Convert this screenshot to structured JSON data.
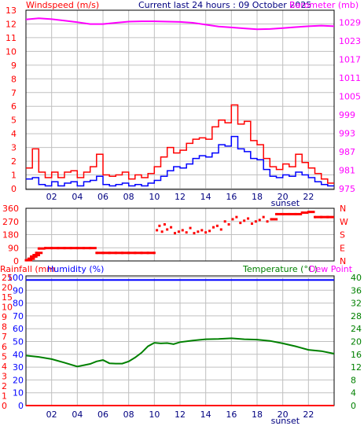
{
  "header": {
    "windspeed_label": "Windspeed (m/s)",
    "current_label": "Current last 24 hours : 09 October 2025",
    "barometer_label": "Barometer (mb)"
  },
  "labels": {
    "rainfall": "Rainfall (mm",
    "humidity": "Humidity (%)",
    "temperature": "Temperature (°C)",
    "dew_point": "Dew Point",
    "sunset": "sunset"
  },
  "colors": {
    "background": "#ffffff",
    "grid": "#c0c0c0",
    "wind_gust": "#ff0000",
    "wind_avg": "#0000ff",
    "barometer": "#ff00ff",
    "direction": "#ff0000",
    "humidity": "#0000ff",
    "rainfall": "#ff0000",
    "temperature": "#008000",
    "axis_red": "#ff0000",
    "axis_magenta": "#ff00ff",
    "axis_blue": "#0000ff",
    "axis_green": "#008000",
    "axis_navy": "#000080"
  },
  "chart_data": [
    {
      "id": "wind",
      "type": "line",
      "title": "Current last 24 hours : 09 October 2025",
      "x_tick_labels": [
        "02",
        "04",
        "06",
        "08",
        "10",
        "12",
        "14",
        "16",
        "18",
        "20",
        "22"
      ],
      "x_range_hours": [
        0,
        24
      ],
      "left_axis": {
        "label": "Windspeed (m/s)",
        "ticks": [
          "0",
          "1",
          "2",
          "3",
          "4",
          "5",
          "6",
          "7",
          "8",
          "9",
          "10",
          "11",
          "12",
          "13"
        ],
        "range": [
          0,
          13
        ]
      },
      "right_axis": {
        "label": "Barometer (mb)",
        "ticks": [
          "975",
          "981",
          "987",
          "993",
          "999",
          "1005",
          "1011",
          "1017",
          "1023",
          "1029"
        ],
        "range": [
          975,
          1033
        ]
      },
      "grid": true,
      "annotation": "sunset",
      "sunset_hour": 19.2,
      "series": [
        {
          "role": "gust",
          "x": [
            0,
            0.5,
            1,
            1.5,
            2,
            2.5,
            3,
            3.5,
            4,
            4.5,
            5,
            5.5,
            6,
            6.5,
            7,
            7.5,
            8,
            8.5,
            9,
            9.5,
            10,
            10.5,
            11,
            11.5,
            12,
            12.5,
            13,
            13.5,
            14,
            14.5,
            15,
            15.5,
            16,
            16.5,
            17,
            17.5,
            18,
            18.5,
            19,
            19.5,
            20,
            20.5,
            21,
            21.5,
            22,
            22.5,
            23,
            23.5
          ],
          "values": [
            1.5,
            2.9,
            1.2,
            0.8,
            1.2,
            0.8,
            1.2,
            1.3,
            0.8,
            1.2,
            1.6,
            2.5,
            1.0,
            0.9,
            1.0,
            1.2,
            0.7,
            1.0,
            0.8,
            1.1,
            1.6,
            2.3,
            3.0,
            2.6,
            2.8,
            3.3,
            3.6,
            3.7,
            3.6,
            4.5,
            5.0,
            4.8,
            6.1,
            4.7,
            4.9,
            3.5,
            3.2,
            2.2,
            1.6,
            1.4,
            1.8,
            1.6,
            2.5,
            1.9,
            1.5,
            1.1,
            0.7,
            0.4
          ]
        },
        {
          "role": "average",
          "x": [
            0,
            0.5,
            1,
            1.5,
            2,
            2.5,
            3,
            3.5,
            4,
            4.5,
            5,
            5.5,
            6,
            6.5,
            7,
            7.5,
            8,
            8.5,
            9,
            9.5,
            10,
            10.5,
            11,
            11.5,
            12,
            12.5,
            13,
            13.5,
            14,
            14.5,
            15,
            15.5,
            16,
            16.5,
            17,
            17.5,
            18,
            18.5,
            19,
            19.5,
            20,
            20.5,
            21,
            21.5,
            22,
            22.5,
            23,
            23.5
          ],
          "values": [
            0.7,
            0.8,
            0.3,
            0.2,
            0.5,
            0.2,
            0.4,
            0.5,
            0.2,
            0.5,
            0.6,
            0.9,
            0.3,
            0.2,
            0.3,
            0.4,
            0.2,
            0.3,
            0.2,
            0.4,
            0.6,
            0.9,
            1.3,
            1.6,
            1.5,
            1.8,
            2.2,
            2.4,
            2.3,
            2.6,
            3.2,
            3.1,
            3.8,
            2.9,
            2.7,
            2.2,
            2.1,
            1.4,
            0.9,
            0.8,
            1.0,
            0.9,
            1.2,
            1.0,
            0.8,
            0.5,
            0.3,
            0.2
          ]
        },
        {
          "role": "barometer",
          "x": [
            0,
            1,
            2,
            3,
            4,
            5,
            6,
            7,
            8,
            9,
            10,
            11,
            12,
            13,
            14,
            15,
            16,
            17,
            18,
            19,
            20,
            21,
            22,
            23,
            24
          ],
          "values": [
            1030,
            1030.4,
            1030.1,
            1029.6,
            1029.1,
            1028.5,
            1028.5,
            1028.9,
            1029.3,
            1029.4,
            1029.4,
            1029.3,
            1029.2,
            1028.9,
            1028.3,
            1027.7,
            1027.4,
            1027.1,
            1026.8,
            1026.9,
            1027.2,
            1027.5,
            1027.8,
            1028.0,
            1027.8
          ]
        }
      ]
    },
    {
      "id": "direction",
      "type": "scatter",
      "x_range_hours": [
        0,
        24
      ],
      "left_axis": {
        "ticks": [
          "0",
          "90",
          "180",
          "270",
          "360"
        ],
        "range": [
          0,
          360
        ]
      },
      "right_axis": {
        "ticks": [
          "N",
          "E",
          "S",
          "W",
          "N"
        ]
      },
      "grid": true,
      "series": [
        {
          "role": "direction",
          "x": [
            0,
            0.2,
            0.4,
            0.6,
            0.8,
            1,
            1.5,
            2,
            2.5,
            3,
            3.5,
            4,
            4.5,
            5,
            5.5,
            6,
            6.5,
            7,
            7.5,
            8,
            8.5,
            9,
            9.5,
            10,
            10.2,
            10.4,
            10.6,
            10.8,
            11,
            11.3,
            11.6,
            11.9,
            12.2,
            12.5,
            12.8,
            13.1,
            13.4,
            13.7,
            14,
            14.3,
            14.6,
            14.9,
            15.2,
            15.5,
            15.8,
            16.1,
            16.4,
            16.7,
            17,
            17.3,
            17.6,
            17.9,
            18.2,
            18.5,
            18.8,
            19.1,
            19.5,
            20,
            20.5,
            21,
            21.5,
            22,
            22.5,
            23,
            23.5
          ],
          "values": [
            5,
            15,
            30,
            40,
            55,
            85,
            88,
            88,
            88,
            88,
            88,
            88,
            88,
            88,
            55,
            55,
            55,
            55,
            55,
            55,
            55,
            55,
            55,
            55,
            210,
            240,
            200,
            250,
            215,
            230,
            190,
            200,
            210,
            195,
            225,
            190,
            200,
            210,
            195,
            205,
            230,
            240,
            215,
            270,
            250,
            285,
            300,
            260,
            275,
            290,
            255,
            270,
            280,
            300,
            270,
            285,
            320,
            320,
            320,
            320,
            330,
            335,
            300,
            300,
            300
          ]
        }
      ]
    },
    {
      "id": "humidity_temperature",
      "type": "line",
      "x_tick_labels": [
        "02",
        "04",
        "06",
        "08",
        "10",
        "12",
        "14",
        "16",
        "18",
        "20",
        "22"
      ],
      "x_range_hours": [
        0,
        24
      ],
      "left_axis": {
        "label": "Humidity (%)",
        "ticks": [
          "0",
          "10",
          "20",
          "30",
          "40",
          "50",
          "60",
          "70",
          "80",
          "90",
          "100"
        ],
        "range": [
          0,
          100
        ]
      },
      "rainfall_axis": {
        "label": "Rainfall (mm",
        "ticks": [
          "0",
          "1",
          "2",
          "3",
          "4",
          "5",
          "6",
          "7",
          "8",
          "9",
          "10",
          "15",
          "20",
          "25"
        ]
      },
      "right_axis": {
        "label": "Temperature (°C)",
        "ticks": [
          "0",
          "4",
          "8",
          "12",
          "16",
          "20",
          "24",
          "28",
          "32",
          "36",
          "40"
        ],
        "range": [
          0,
          40
        ]
      },
      "grid": true,
      "annotation": "sunset",
      "sunset_hour": 19.2,
      "series": [
        {
          "role": "humidity",
          "x": [
            0,
            24
          ],
          "values": [
            98,
            98
          ]
        },
        {
          "role": "rainfall",
          "x": [
            0,
            24
          ],
          "values": [
            0,
            0
          ]
        },
        {
          "role": "temperature",
          "x": [
            0,
            1,
            2,
            3,
            4,
            5,
            5.5,
            6,
            6.5,
            7,
            7.5,
            8,
            8.5,
            9,
            9.5,
            10,
            10.5,
            11,
            11.5,
            12,
            13,
            14,
            15,
            16,
            17,
            18,
            19,
            20,
            21,
            22,
            23,
            24
          ],
          "values": [
            15.6,
            15.2,
            14.5,
            13.4,
            12.2,
            13.0,
            13.8,
            14.2,
            13.2,
            13.1,
            13.1,
            13.8,
            15.0,
            16.5,
            18.5,
            19.6,
            19.4,
            19.5,
            19.2,
            19.8,
            20.3,
            20.7,
            20.8,
            21.0,
            20.7,
            20.6,
            20.2,
            19.4,
            18.5,
            17.4,
            17.0,
            16.2
          ]
        }
      ]
    }
  ]
}
